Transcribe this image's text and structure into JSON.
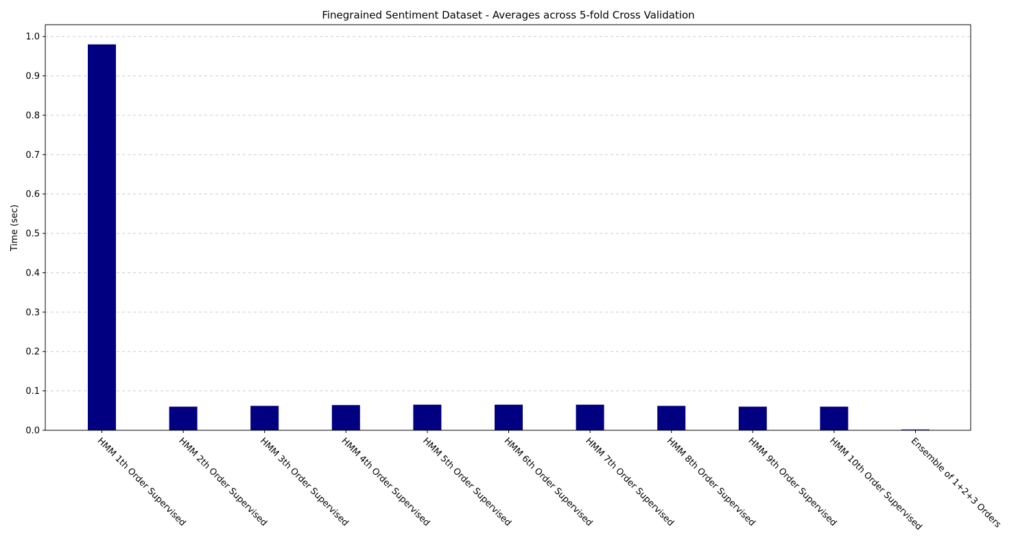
{
  "chart_data": {
    "type": "bar",
    "title": "Finegrained Sentiment Dataset - Averages across 5-fold Cross Validation",
    "xlabel": "",
    "ylabel": "Time (sec)",
    "ylim": [
      0.0,
      1.03
    ],
    "yticks": [
      "0.0",
      "0.1",
      "0.2",
      "0.3",
      "0.4",
      "0.5",
      "0.6",
      "0.7",
      "0.8",
      "0.9",
      "1.0"
    ],
    "grid": true,
    "bar_color": "#000080",
    "categories": [
      "HMM 1th Order Supervised",
      "HMM 2th Order Supervised",
      "HMM 3th Order Supervised",
      "HMM 4th Order Supervised",
      "HMM 5th Order Supervised",
      "HMM 6th Order Supervised",
      "HMM 7th Order Supervised",
      "HMM 8th Order Supervised",
      "HMM 9th Order Supervised",
      "HMM 10th Order Supervised",
      "Ensemble of 1+2+3 Orders"
    ],
    "values": [
      0.98,
      0.06,
      0.062,
      0.064,
      0.065,
      0.065,
      0.065,
      0.062,
      0.06,
      0.06,
      0.002
    ]
  }
}
